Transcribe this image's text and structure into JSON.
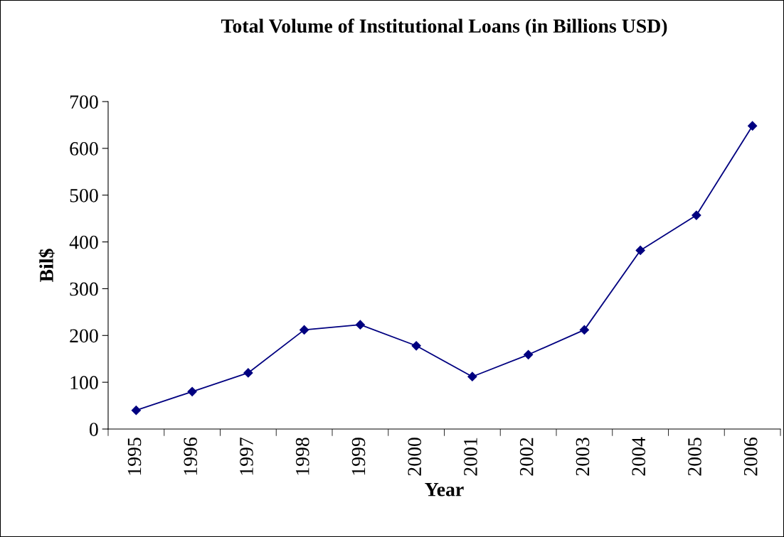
{
  "chart_data": {
    "type": "line",
    "title": "Total Volume of Institutional Loans (in Billions USD)",
    "xlabel": "Year",
    "ylabel": "Bil$",
    "categories": [
      "1995",
      "1996",
      "1997",
      "1998",
      "1999",
      "2000",
      "2001",
      "2002",
      "2003",
      "2004",
      "2005",
      "2006"
    ],
    "series": [
      {
        "color": "#000080",
        "values": [
          40,
          80,
          120,
          212,
          223,
          178,
          112,
          159,
          212,
          382,
          457,
          648
        ]
      }
    ],
    "ylim": [
      0,
      700
    ],
    "yticks": [
      0,
      100,
      200,
      300,
      400,
      500,
      600,
      700
    ],
    "marker": "diamond",
    "line_style": "solid"
  }
}
